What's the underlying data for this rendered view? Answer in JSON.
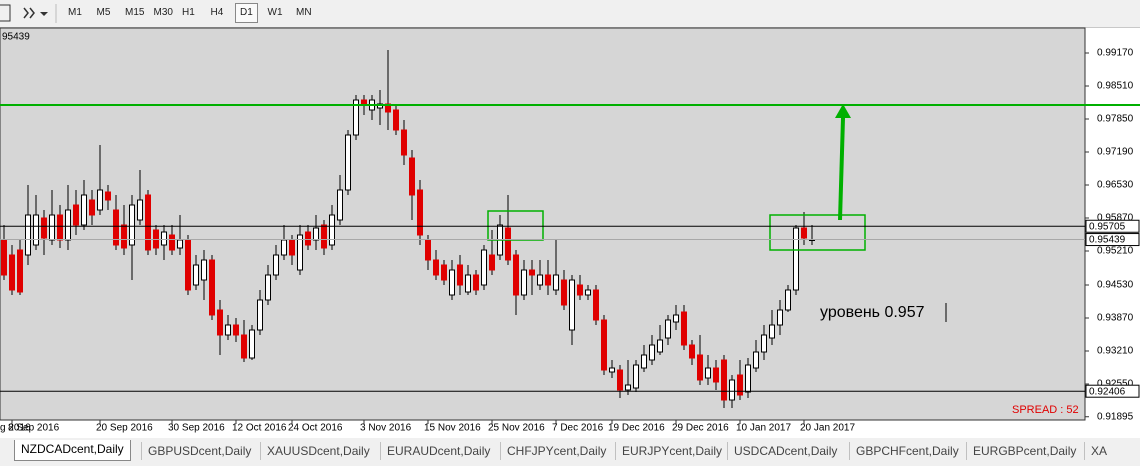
{
  "toolbar": {
    "timeframes": [
      "M1",
      "M5",
      "M15",
      "M30",
      "H1",
      "H4",
      "D1",
      "W1",
      "MN"
    ],
    "active": "D1"
  },
  "chart_data": {
    "type": "candlestick",
    "corner_label": "95439",
    "cut_date_label": "g 2016",
    "annotation": "уровень 0.957",
    "spread": "SPREAD : 52",
    "background": "#d6d6d6",
    "bull_color": "#ffffff",
    "bear_color": "#e00000",
    "ylim": [
      0.9183,
      0.9967
    ],
    "yticks": [
      {
        "value": 0.9917,
        "label": "0.99170"
      },
      {
        "value": 0.9851,
        "label": "0.98510"
      },
      {
        "value": 0.9785,
        "label": "0.97850"
      },
      {
        "value": 0.9719,
        "label": "0.97190"
      },
      {
        "value": 0.9653,
        "label": "0.96530"
      },
      {
        "value": 0.9587,
        "label": "0.95870"
      },
      {
        "value": 0.9521,
        "label": "0.95210"
      },
      {
        "value": 0.9453,
        "label": "0.94530"
      },
      {
        "value": 0.9387,
        "label": "0.93870"
      },
      {
        "value": 0.9321,
        "label": "0.93210"
      },
      {
        "value": 0.9255,
        "label": "0.92550"
      },
      {
        "value": 0.91895,
        "label": "0.91895"
      }
    ],
    "hlines": [
      {
        "value": 0.9813,
        "color": "#00b000"
      },
      {
        "value": 0.95439,
        "label": "0.95439",
        "color": "#a8a8a8"
      },
      {
        "value": 0.95705,
        "label": "0.95705",
        "color": "#000000"
      },
      {
        "value": 0.92406,
        "label": "0.92406",
        "color": "#000000"
      }
    ],
    "x": [
      null,
      "8 Sep 2016",
      null,
      null,
      null,
      null,
      null,
      null,
      null,
      null,
      null,
      null,
      "20 Sep 2016",
      null,
      null,
      null,
      null,
      null,
      null,
      null,
      null,
      "30 Sep 2016",
      null,
      null,
      null,
      null,
      null,
      null,
      null,
      "12 Oct 2016",
      null,
      null,
      null,
      null,
      null,
      null,
      "24 Oct 2016",
      null,
      null,
      null,
      null,
      null,
      null,
      null,
      null,
      "3 Nov 2016",
      null,
      null,
      null,
      null,
      null,
      null,
      null,
      "15 Nov 2016",
      null,
      null,
      null,
      null,
      null,
      null,
      null,
      "25 Nov 2016",
      null,
      null,
      null,
      null,
      null,
      null,
      null,
      "7 Dec 2016",
      null,
      null,
      null,
      null,
      null,
      null,
      "19 Dec 2016",
      null,
      null,
      null,
      null,
      null,
      null,
      null,
      "29 Dec 2016",
      null,
      null,
      null,
      null,
      null,
      null,
      null,
      "10 Jan 2017",
      null,
      null,
      null,
      null,
      null,
      null,
      null,
      "20 Jan 2017",
      null
    ],
    "open": [
      0.9543,
      0.9513,
      0.9523,
      0.9513,
      0.9533,
      0.9587,
      0.9543,
      0.9593,
      0.9543,
      0.9613,
      0.9573,
      0.9623,
      0.9603,
      0.9639,
      0.9603,
      0.9573,
      0.9533,
      0.9583,
      0.9633,
      0.9563,
      0.9533,
      0.9553,
      0.9527,
      0.9543,
      0.9453,
      0.9463,
      0.9503,
      0.9403,
      0.9353,
      0.9373,
      0.9353,
      0.9307,
      0.9363,
      0.9423,
      0.9473,
      0.9513,
      0.9543,
      0.9483,
      0.9559,
      0.9543,
      0.9573,
      0.9533,
      0.9583,
      0.9643,
      0.9753,
      0.9823,
      0.9803,
      0.9807,
      0.9815,
      0.9803,
      0.9763,
      0.9707,
      0.9643,
      0.9543,
      0.9503,
      0.9493,
      0.9433,
      0.9493,
      0.9439,
      0.9473,
      0.9453,
      0.9513,
      0.9513,
      0.9567,
      0.9513,
      0.9433,
      0.9483,
      0.9453,
      0.9473,
      0.9443,
      0.9463,
      0.9363,
      0.9453,
      0.9433,
      0.9443,
      0.9383,
      0.9279,
      0.9283,
      0.9243,
      0.9247,
      0.9287,
      0.9303,
      0.9319,
      0.9347,
      0.9379,
      0.9399,
      0.9333,
      0.9313,
      0.9267,
      0.9287,
      0.9303,
      0.9223,
      0.9273,
      0.9239,
      0.9287,
      0.9319,
      0.9347,
      0.9373,
      0.9403,
      0.9443,
      0.9567,
      0.9543
    ],
    "high": [
      0.9573,
      0.9533,
      0.9543,
      0.9653,
      0.9633,
      0.9603,
      0.9643,
      0.9613,
      0.9653,
      0.9643,
      0.9663,
      0.9643,
      0.9733,
      0.9653,
      0.9633,
      0.9613,
      0.9633,
      0.9683,
      0.9643,
      0.9573,
      0.9573,
      0.9573,
      0.9593,
      0.9553,
      0.9513,
      0.9523,
      0.9513,
      0.9423,
      0.9393,
      0.9387,
      0.9383,
      0.9373,
      0.9443,
      0.9493,
      0.9533,
      0.9573,
      0.9553,
      0.9573,
      0.9573,
      0.9593,
      0.9583,
      0.9613,
      0.9673,
      0.9763,
      0.9833,
      0.9833,
      0.9833,
      0.9843,
      0.9923,
      0.9813,
      0.9783,
      0.9723,
      0.9663,
      0.9553,
      0.9523,
      0.9503,
      0.9503,
      0.9513,
      0.9493,
      0.9483,
      0.9533,
      0.9563,
      0.9593,
      0.9633,
      0.9523,
      0.9503,
      0.9503,
      0.9503,
      0.9503,
      0.9543,
      0.9483,
      0.9473,
      0.9473,
      0.9453,
      0.9453,
      0.9393,
      0.9303,
      0.9293,
      0.9303,
      0.9303,
      0.9333,
      0.9353,
      0.9373,
      0.9393,
      0.9413,
      0.9413,
      0.9343,
      0.9353,
      0.9313,
      0.9303,
      0.9313,
      0.9273,
      0.9303,
      0.9307,
      0.9343,
      0.9373,
      0.9403,
      0.9423,
      0.9453,
      0.9573,
      0.9599,
      0.9573
    ],
    "low": [
      0.9463,
      0.9433,
      0.9433,
      0.9493,
      0.9523,
      0.9513,
      0.9533,
      0.9527,
      0.9523,
      0.9553,
      0.9563,
      0.9573,
      0.9593,
      0.9603,
      0.9523,
      0.9513,
      0.9463,
      0.9573,
      0.9513,
      0.9513,
      0.9503,
      0.9513,
      0.9513,
      0.9433,
      0.9443,
      0.9423,
      0.9383,
      0.9313,
      0.9343,
      0.9339,
      0.9299,
      0.9303,
      0.9353,
      0.9413,
      0.9463,
      0.9503,
      0.9493,
      0.9473,
      0.9523,
      0.9523,
      0.9513,
      0.9523,
      0.9573,
      0.9633,
      0.9743,
      0.9793,
      0.9783,
      0.9773,
      0.9763,
      0.9753,
      0.9693,
      0.9583,
      0.9533,
      0.9483,
      0.9463,
      0.9453,
      0.9423,
      0.9433,
      0.9433,
      0.9433,
      0.9443,
      0.9473,
      0.9503,
      0.9493,
      0.9393,
      0.9423,
      0.9433,
      0.9443,
      0.9433,
      0.9433,
      0.9403,
      0.9333,
      0.9423,
      0.9423,
      0.9373,
      0.9273,
      0.9267,
      0.9227,
      0.9233,
      0.9239,
      0.9279,
      0.9293,
      0.9313,
      0.9333,
      0.9363,
      0.9323,
      0.9293,
      0.9253,
      0.9253,
      0.9243,
      0.9207,
      0.9207,
      0.9223,
      0.9227,
      0.9279,
      0.9303,
      0.9333,
      0.9353,
      0.9399,
      0.9433,
      0.9533,
      0.9533
    ],
    "close": [
      0.9473,
      0.9443,
      0.9439,
      0.9593,
      0.9593,
      0.9547,
      0.9593,
      0.9543,
      0.9603,
      0.9573,
      0.9633,
      0.9593,
      0.9643,
      0.9623,
      0.9533,
      0.9527,
      0.9613,
      0.9623,
      0.9523,
      0.9527,
      0.9559,
      0.9523,
      0.9543,
      0.9443,
      0.9493,
      0.9503,
      0.9393,
      0.9353,
      0.9373,
      0.9353,
      0.9307,
      0.9363,
      0.9423,
      0.9473,
      0.9513,
      0.9543,
      0.9513,
      0.9553,
      0.9533,
      0.9567,
      0.9527,
      0.9593,
      0.9643,
      0.9753,
      0.9823,
      0.9813,
      0.9823,
      0.9815,
      0.9799,
      0.9763,
      0.9713,
      0.9633,
      0.9553,
      0.9503,
      0.9473,
      0.9463,
      0.9483,
      0.9453,
      0.9473,
      0.9443,
      0.9523,
      0.9483,
      0.9573,
      0.9503,
      0.9433,
      0.9483,
      0.9473,
      0.9473,
      0.9453,
      0.9473,
      0.9413,
      0.9463,
      0.9433,
      0.9443,
      0.9383,
      0.9283,
      0.9287,
      0.9243,
      0.9253,
      0.9293,
      0.9313,
      0.9333,
      0.9343,
      0.9383,
      0.9393,
      0.9333,
      0.9307,
      0.9263,
      0.9287,
      0.9259,
      0.9223,
      0.9263,
      0.9233,
      0.9293,
      0.9319,
      0.9353,
      0.9373,
      0.9403,
      0.9443,
      0.9567,
      0.9547,
      0.9544
    ]
  },
  "tabs": {
    "items": [
      "NZDCADcent,Daily",
      "GBPUSDcent,Daily",
      "XAUUSDcent,Daily",
      "EURAUDcent,Daily",
      "CHFJPYcent,Daily",
      "EURJPYcent,Daily",
      "USDCADcent,Daily",
      "GBPCHFcent,Daily",
      "EURGBPcent,Daily",
      "XA"
    ],
    "active": 0
  }
}
